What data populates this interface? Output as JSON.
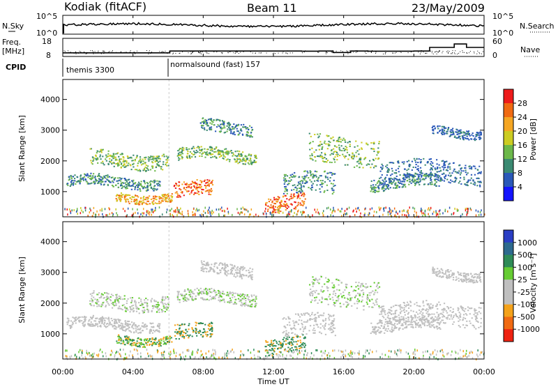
{
  "header": {
    "site": "Kodiak (fitACF)",
    "beam": "Beam 11",
    "date": "23/May/2009"
  },
  "panel_labels": {
    "nsky": "N.Sky",
    "freq": "Freq.",
    "freq_unit": "[MHz]",
    "cpid": "CPID",
    "nsearch": "N.Search",
    "nave": "Nave"
  },
  "cpid_segments": [
    {
      "label": "themis 3300",
      "start_hour": 0
    },
    {
      "label": "normalsound (fast) 157",
      "start_hour": 6
    }
  ],
  "chart_data": [
    {
      "type": "line",
      "name": "noise",
      "left_label": "N.Sky",
      "right_label": "N.Search",
      "y_scale": "log",
      "y_ticks_left": [
        "10^5",
        "10^0"
      ],
      "y_ticks_right": [
        "10^5",
        "10^0"
      ],
      "x_range": [
        0,
        24
      ]
    },
    {
      "type": "line",
      "name": "frequency-nave",
      "left_label": "Freq. [MHz]",
      "right_label": "Nave",
      "y_ticks_left": [
        "18",
        "8"
      ],
      "y_ticks_right": [
        "60",
        "0"
      ],
      "ylim_left": [
        8,
        18
      ],
      "ylim_right": [
        0,
        60
      ],
      "freq_steps": [
        {
          "x": 0.0,
          "y": 10.0
        },
        {
          "x": 6.1,
          "y": 11.0
        },
        {
          "x": 13.6,
          "y": 10.9
        },
        {
          "x": 14.6,
          "y": 11.0
        },
        {
          "x": 15.4,
          "y": 10.2
        },
        {
          "x": 16.4,
          "y": 11.0
        },
        {
          "x": 17.4,
          "y": 10.9
        },
        {
          "x": 20.0,
          "y": 11.0
        },
        {
          "x": 20.9,
          "y": 13.0
        },
        {
          "x": 22.3,
          "y": 14.9
        },
        {
          "x": 23.0,
          "y": 13.0
        },
        {
          "x": 24.0,
          "y": 13.0
        }
      ]
    },
    {
      "type": "heatmap",
      "name": "power",
      "ylabel": "Slant Range [km]",
      "y_ticks": [
        "1000",
        "2000",
        "3000",
        "4000"
      ],
      "ylim": [
        180,
        4650
      ],
      "xlim": [
        0,
        24
      ],
      "colorbar_label": "Power [dB]",
      "colorbar_ticks": [
        "4",
        "8",
        "12",
        "16",
        "20",
        "24",
        "28"
      ],
      "colorbar_colors": [
        "#1414ff",
        "#2a58b8",
        "#3b8a72",
        "#6cb84a",
        "#cccc22",
        "#f5a623",
        "#f06a12",
        "#ee1b1b"
      ]
    },
    {
      "type": "heatmap",
      "name": "velocity",
      "ylabel": "Slant Range [km]",
      "y_ticks": [
        "1000",
        "2000",
        "3000",
        "4000"
      ],
      "ylim": [
        180,
        4650
      ],
      "xlim": [
        0,
        24
      ],
      "xlabel": "Time UT",
      "x_ticks": [
        "00:00",
        "04:00",
        "08:00",
        "12:00",
        "16:00",
        "20:00",
        "00:00"
      ],
      "colorbar_label": "Velocity [m s⁻¹]",
      "colorbar_ticks": [
        "1000",
        "500",
        "100",
        "25",
        "-25",
        "-100",
        "-500",
        "-1000"
      ],
      "colorbar_colors": [
        "#2a3ec4",
        "#2d6a8e",
        "#2e8b57",
        "#66cc33",
        "#bfbfbf",
        "#bfbfbf",
        "#f4a21a",
        "#f06a12",
        "#ee2211"
      ]
    }
  ]
}
